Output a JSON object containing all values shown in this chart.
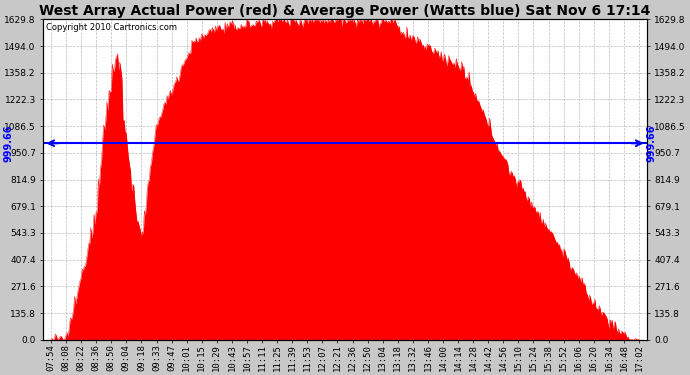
{
  "title": "West Array Actual Power (red) & Average Power (Watts blue) Sat Nov 6 17:14",
  "copyright": "Copyright 2010 Cartronics.com",
  "avg_power": 999.66,
  "y_max": 1629.8,
  "y_min": 0.0,
  "yticks": [
    0.0,
    135.8,
    271.6,
    407.4,
    543.3,
    679.1,
    814.9,
    950.7,
    1086.5,
    1222.3,
    1358.2,
    1494.0,
    1629.8
  ],
  "plot_bg_color": "#ffffff",
  "fig_bg_color": "#c8c8c8",
  "red_color": "#ff0000",
  "blue_color": "#0000ff",
  "grid_color": "#aaaaaa",
  "title_fontsize": 10,
  "tick_fontsize": 6.5,
  "copyright_fontsize": 6,
  "x_labels": [
    "07:54",
    "08:08",
    "08:22",
    "08:36",
    "08:50",
    "09:04",
    "09:18",
    "09:33",
    "09:47",
    "10:01",
    "10:15",
    "10:29",
    "10:43",
    "10:57",
    "11:11",
    "11:25",
    "11:39",
    "11:53",
    "12:07",
    "12:21",
    "12:36",
    "12:50",
    "13:04",
    "13:18",
    "13:32",
    "13:46",
    "14:00",
    "14:14",
    "14:28",
    "14:42",
    "14:56",
    "15:10",
    "15:24",
    "15:38",
    "15:52",
    "16:06",
    "16:20",
    "16:34",
    "16:48",
    "17:02"
  ]
}
